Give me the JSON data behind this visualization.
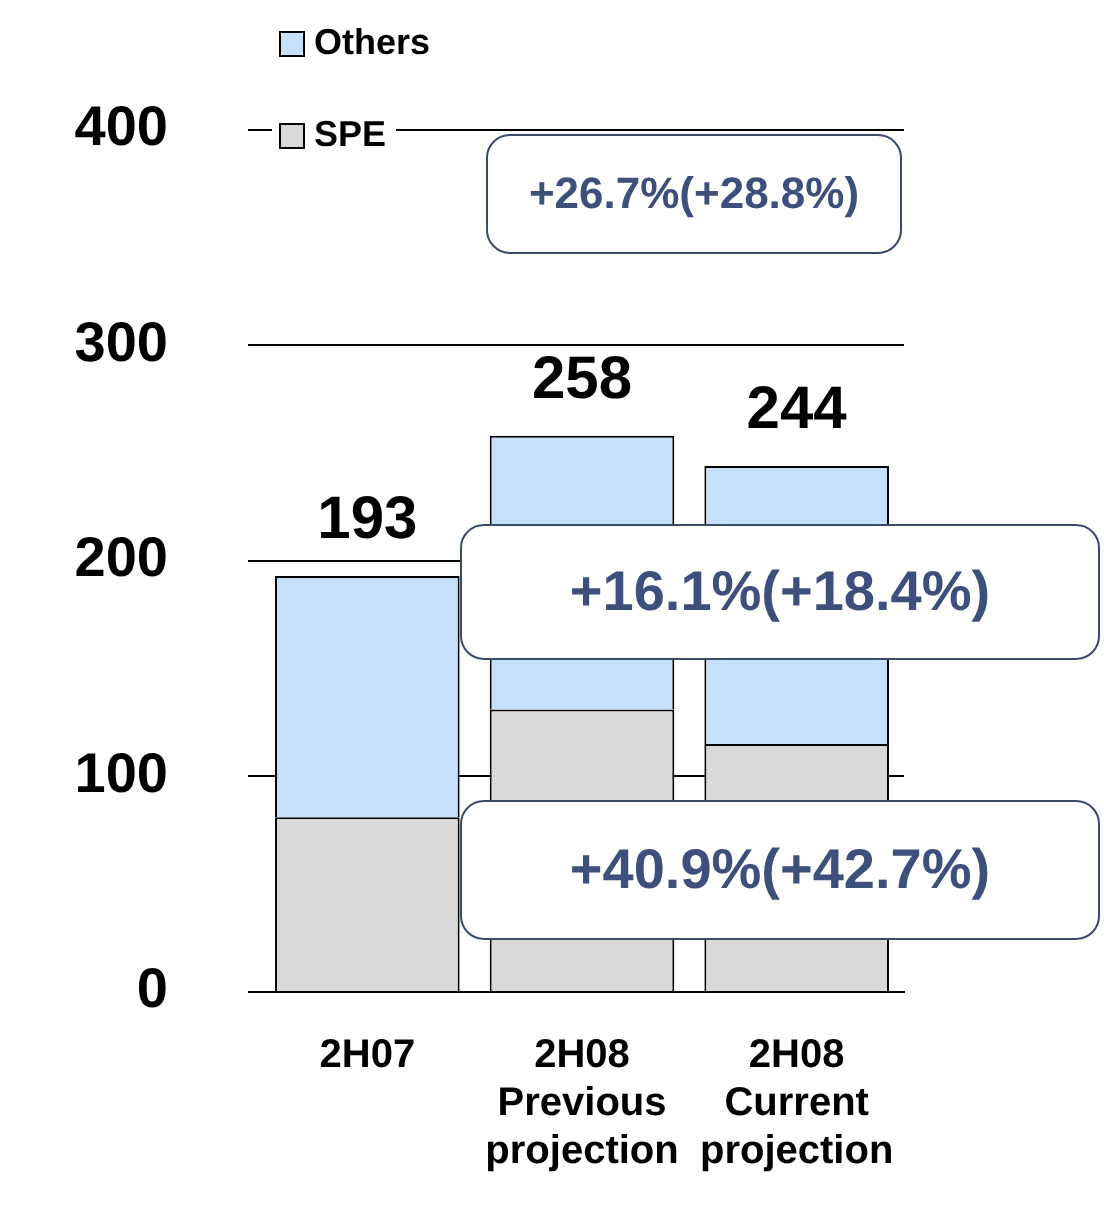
{
  "chart_data": {
    "type": "bar",
    "stacked": true,
    "categories": [
      "2H07",
      "2H08\nPrevious\nprojection",
      "2H08\nCurrent\nprojection"
    ],
    "series": [
      {
        "name": "SPE",
        "color": "#d9d9d9",
        "values": [
          81,
          131,
          115
        ]
      },
      {
        "name": "Others",
        "color": "#c6e0fa",
        "values": [
          112,
          127,
          129
        ]
      }
    ],
    "totals": [
      "193",
      "258",
      "244"
    ],
    "ylim": [
      0,
      400
    ],
    "yticks": [
      0,
      100,
      200,
      300,
      400
    ],
    "grid": "y",
    "legend": "top left",
    "annotations": [
      "+26.7%(+28.8%)",
      "+16.1%(+18.4%)",
      "+40.9%(+42.7%)"
    ]
  }
}
